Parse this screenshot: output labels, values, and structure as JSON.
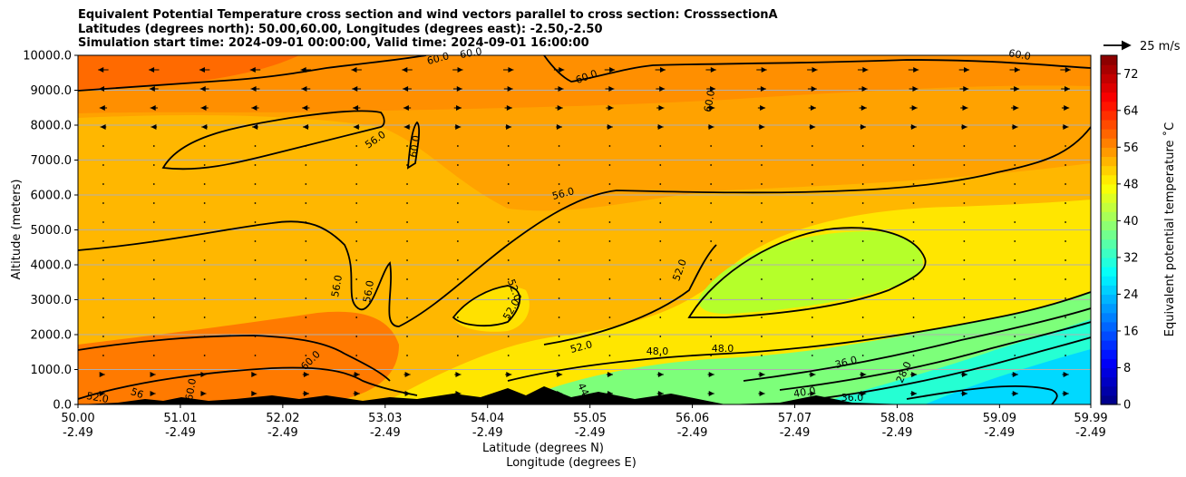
{
  "chart_data": {
    "type": "contour",
    "title": [
      "Equivalent Potential Temperature cross section and wind vectors parallel to cross section: CrosssectionA",
      "Latitudes (degrees north): 50.00,60.00, Longitudes (degrees east): -2.50,-2.50",
      "Simulation start time: 2024-09-01 00:00:00, Valid time: 2024-09-01 16:00:00"
    ],
    "xlabel_lat": "Latitude (degrees N)",
    "xlabel_lon": "Longitude (degrees E)",
    "ylabel": "Altitude (meters)",
    "xlim": [
      50.0,
      59.99
    ],
    "ylim": [
      0,
      10000
    ],
    "x_ticks": [
      {
        "lat": "50.00",
        "lon": "-2.49"
      },
      {
        "lat": "51.01",
        "lon": "-2.49"
      },
      {
        "lat": "52.02",
        "lon": "-2.49"
      },
      {
        "lat": "53.03",
        "lon": "-2.49"
      },
      {
        "lat": "54.04",
        "lon": "-2.49"
      },
      {
        "lat": "55.05",
        "lon": "-2.49"
      },
      {
        "lat": "56.06",
        "lon": "-2.49"
      },
      {
        "lat": "57.07",
        "lon": "-2.49"
      },
      {
        "lat": "58.08",
        "lon": "-2.49"
      },
      {
        "lat": "59.09",
        "lon": "-2.49"
      },
      {
        "lat": "59.99",
        "lon": "-2.49"
      }
    ],
    "y_ticks": [
      "0.0",
      "1000.0",
      "2000.0",
      "3000.0",
      "4000.0",
      "5000.0",
      "6000.0",
      "7000.0",
      "8000.0",
      "9000.0",
      "10000.0"
    ],
    "grid": "horizontal",
    "colorbar": {
      "label": "Equivalent potential temperature ˚C",
      "ticks": [
        "0",
        "8",
        "16",
        "24",
        "32",
        "40",
        "48",
        "56",
        "64",
        "72"
      ],
      "range": [
        0,
        76
      ],
      "colormap": "jet"
    },
    "quiver_key": "25 m/s",
    "contour_labels": [
      "60.0",
      "60.0",
      "60.0",
      "60.0",
      "60.0",
      "56.0",
      "60.0",
      "56.0",
      "56.0",
      "56.0",
      "52.0",
      "52.0",
      "52.0",
      "52.0",
      "48.0",
      "48.0",
      "36.0",
      "28.0",
      "60.0",
      "60.0",
      "52.0",
      "56",
      "44",
      "40.0",
      "36.0"
    ]
  }
}
